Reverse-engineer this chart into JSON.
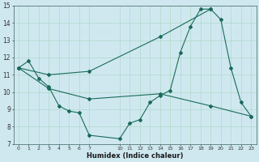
{
  "title": "",
  "xlabel": "Humidex (Indice chaleur)",
  "bg_color": "#cfe8f0",
  "grid_color": "#b0d8c8",
  "line_color": "#1a6b5a",
  "xlim": [
    -0.5,
    23.5
  ],
  "ylim": [
    7,
    15
  ],
  "yticks": [
    7,
    8,
    9,
    10,
    11,
    12,
    13,
    14,
    15
  ],
  "xticks": [
    0,
    1,
    2,
    3,
    4,
    5,
    6,
    7,
    10,
    11,
    12,
    13,
    14,
    15,
    16,
    17,
    18,
    19,
    20,
    21,
    22,
    23
  ],
  "xtick_labels": [
    "0",
    "1",
    "2",
    "3",
    "4",
    "5",
    "6",
    "7",
    "1011",
    "12",
    "13",
    "14",
    "15",
    "16",
    "17",
    "18",
    "19",
    "20",
    "21",
    "2223",
    "",
    ""
  ],
  "series1_x": [
    0,
    1,
    2,
    3,
    4,
    5,
    6,
    7,
    10,
    11,
    12,
    13,
    14,
    15,
    16,
    17,
    18,
    19,
    20,
    21,
    22,
    23
  ],
  "series1_y": [
    11.4,
    11.8,
    10.8,
    10.3,
    9.2,
    8.9,
    8.8,
    7.5,
    7.3,
    8.2,
    8.4,
    9.4,
    9.8,
    10.1,
    12.3,
    13.8,
    14.8,
    14.8,
    14.2,
    11.4,
    9.4,
    8.6
  ],
  "series2_x": [
    0,
    3,
    7,
    14,
    19
  ],
  "series2_y": [
    11.4,
    11.0,
    11.2,
    13.2,
    14.8
  ],
  "series3_x": [
    0,
    3,
    7,
    14,
    19,
    23
  ],
  "series3_y": [
    11.4,
    10.2,
    9.6,
    9.9,
    9.2,
    8.6
  ]
}
